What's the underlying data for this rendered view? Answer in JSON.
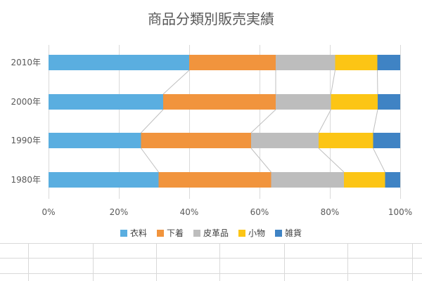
{
  "chart_data": {
    "type": "bar",
    "orientation": "horizontal",
    "stacked": "percent",
    "title": "商品分類別販売実績",
    "categories": [
      "2010年",
      "2000年",
      "1990年",
      "1980年"
    ],
    "series": [
      {
        "name": "衣料",
        "color": "#5aaee0",
        "values": [
          40,
          32.6,
          26.3,
          31.3
        ]
      },
      {
        "name": "下着",
        "color": "#f1943d",
        "values": [
          24.6,
          32,
          31.3,
          32
        ]
      },
      {
        "name": "皮革品",
        "color": "#bdbdbd",
        "values": [
          16.9,
          15.7,
          19.2,
          20.7
        ]
      },
      {
        "name": "小物",
        "color": "#fcc515",
        "values": [
          12,
          13.3,
          15.5,
          11.7
        ]
      },
      {
        "name": "雑貨",
        "color": "#3f83c4",
        "values": [
          6.5,
          6.4,
          7.7,
          4.3
        ]
      }
    ],
    "x_ticks": [
      "0%",
      "20%",
      "40%",
      "60%",
      "80%",
      "100%"
    ],
    "xlim": [
      0,
      100
    ],
    "series_lines": true,
    "legend_position": "bottom"
  }
}
